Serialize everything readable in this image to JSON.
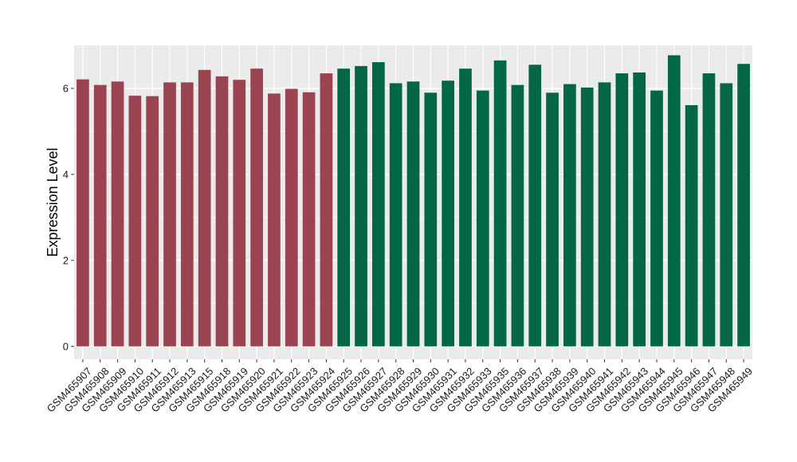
{
  "chart_data": {
    "type": "bar",
    "title": "",
    "xlabel": "",
    "ylabel": "Expression Level",
    "ylim": [
      -0.3,
      7.0
    ],
    "yticks": [
      0,
      2,
      4,
      6
    ],
    "grid": true,
    "legend": "none",
    "colors": {
      "panel_bg": "#ebebeb",
      "grid": "#ffffff",
      "group1": "#9a4452",
      "group2": "#036644"
    },
    "categories": [
      "GSM465907",
      "GSM465908",
      "GSM465909",
      "GSM465910",
      "GSM465911",
      "GSM465912",
      "GSM465913",
      "GSM465915",
      "GSM465918",
      "GSM465919",
      "GSM465920",
      "GSM465921",
      "GSM465922",
      "GSM465923",
      "GSM465924",
      "GSM465925",
      "GSM465926",
      "GSM465927",
      "GSM465928",
      "GSM465929",
      "GSM465930",
      "GSM465931",
      "GSM465932",
      "GSM465933",
      "GSM465935",
      "GSM465936",
      "GSM465937",
      "GSM465938",
      "GSM465939",
      "GSM465940",
      "GSM465941",
      "GSM465942",
      "GSM465943",
      "GSM465944",
      "GSM465945",
      "GSM465946",
      "GSM465947",
      "GSM465948",
      "GSM465949"
    ],
    "values": [
      6.21,
      6.08,
      6.16,
      5.83,
      5.82,
      6.14,
      6.14,
      6.43,
      6.28,
      6.2,
      6.46,
      5.88,
      5.99,
      5.91,
      6.35,
      6.46,
      6.52,
      6.61,
      6.12,
      6.16,
      5.9,
      6.18,
      6.46,
      5.95,
      6.65,
      6.08,
      6.55,
      5.9,
      6.1,
      6.02,
      6.14,
      6.35,
      6.37,
      5.95,
      6.77,
      5.61,
      6.35,
      6.12,
      6.57
    ],
    "groups": [
      1,
      1,
      1,
      1,
      1,
      1,
      1,
      1,
      1,
      1,
      1,
      1,
      1,
      1,
      1,
      2,
      2,
      2,
      2,
      2,
      2,
      2,
      2,
      2,
      2,
      2,
      2,
      2,
      2,
      2,
      2,
      2,
      2,
      2,
      2,
      2,
      2,
      2,
      2
    ]
  }
}
